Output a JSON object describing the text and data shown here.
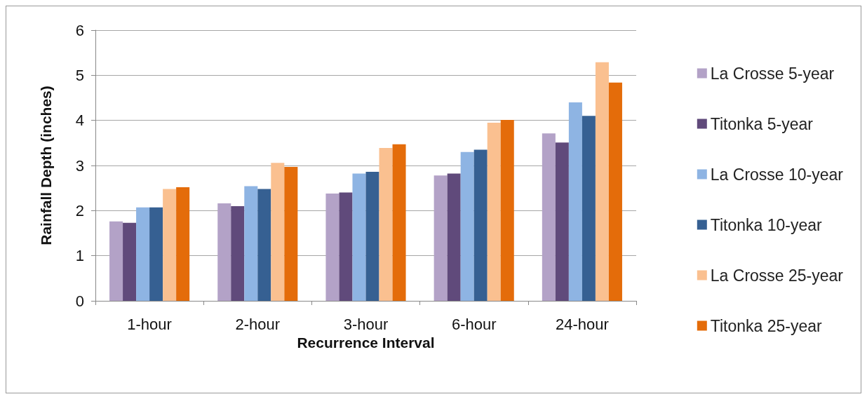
{
  "chart_data": {
    "type": "bar",
    "xlabel": "Recurrence Interval",
    "ylabel": "Rainfall Depth (inches)",
    "categories": [
      "1-hour",
      "2-hour",
      "3-hour",
      "6-hour",
      "24-hour"
    ],
    "series": [
      {
        "name": "La Crosse 5-year",
        "color": "#b3a2c7",
        "values": [
          1.76,
          2.16,
          2.38,
          2.78,
          3.71
        ]
      },
      {
        "name": "Titonka 5-year",
        "color": "#604a7b",
        "values": [
          1.73,
          2.1,
          2.4,
          2.82,
          3.51
        ]
      },
      {
        "name": "La Crosse 10-year",
        "color": "#8eb4e3",
        "values": [
          2.07,
          2.54,
          2.82,
          3.3,
          4.4
        ]
      },
      {
        "name": "Titonka 10-year",
        "color": "#366092",
        "values": [
          2.07,
          2.48,
          2.86,
          3.35,
          4.1
        ]
      },
      {
        "name": "La Crosse 25-year",
        "color": "#fac090",
        "values": [
          2.48,
          3.06,
          3.39,
          3.95,
          5.29
        ]
      },
      {
        "name": "Titonka 25-year",
        "color": "#e46c0a",
        "values": [
          2.52,
          2.97,
          3.47,
          4.01,
          4.84
        ]
      }
    ],
    "ylim": [
      0,
      6
    ],
    "yticks": [
      0,
      1,
      2,
      3,
      4,
      5,
      6
    ],
    "grid": "y",
    "legend": "right"
  }
}
